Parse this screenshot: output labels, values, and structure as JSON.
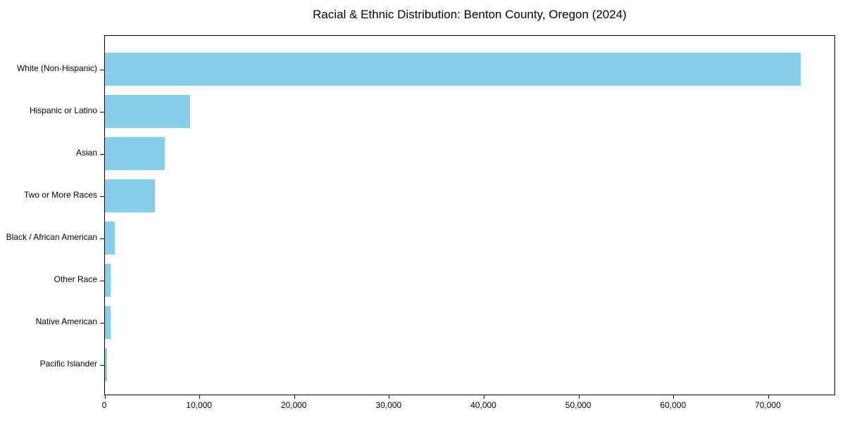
{
  "title": "Racial & Ethnic Distribution: Benton County, Oregon (2024)",
  "chart_data": {
    "type": "bar",
    "orientation": "horizontal",
    "title": "Racial & Ethnic Distribution: Benton County, Oregon (2024)",
    "xlabel": "",
    "ylabel": "",
    "categories": [
      "White (Non-Hispanic)",
      "Hispanic or Latino",
      "Asian",
      "Two or More Races",
      "Black / African American",
      "Other Race",
      "Native American",
      "Pacific Islander"
    ],
    "values": [
      73400,
      9000,
      6300,
      5250,
      1060,
      620,
      560,
      220
    ],
    "xlim": [
      0,
      77100
    ],
    "x_ticks": [
      0,
      10000,
      20000,
      30000,
      40000,
      50000,
      60000,
      70000
    ],
    "x_tick_labels": [
      "0",
      "10,000",
      "20,000",
      "30,000",
      "40,000",
      "50,000",
      "60,000",
      "70,000"
    ],
    "bar_color": "#87CEEB",
    "axis_color": "#000000",
    "grid": false,
    "legend": null
  }
}
